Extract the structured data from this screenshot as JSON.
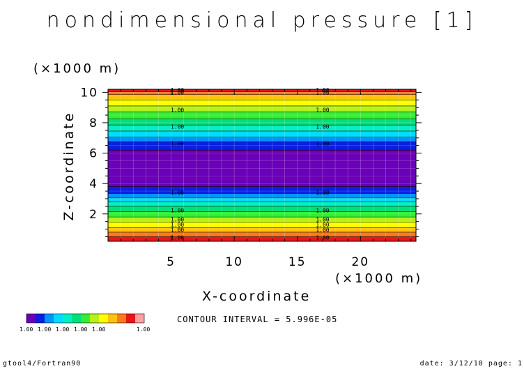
{
  "title": "nondimensional pressure [1]",
  "xaxis": {
    "label": "X-coordinate",
    "unit": "(×1000 m)",
    "ticks": [
      5,
      10,
      15,
      20
    ],
    "range": [
      0,
      24.4
    ]
  },
  "yaxis": {
    "label": "Z-coordinate",
    "unit": "(×1000 m)",
    "ticks": [
      2,
      4,
      6,
      8,
      10
    ],
    "range": [
      0.2,
      10.2
    ]
  },
  "contour_interval_text": "CONTOUR INTERVAL = 5.996E-05",
  "footer_left": "gtool4/Fortran90",
  "footer_right": "date: 3/12/10 page: 1",
  "chart_data": {
    "type": "heatmap",
    "title": "nondimensional pressure [1]",
    "xlabel": "X-coordinate",
    "ylabel": "Z-coordinate",
    "xlim": [
      0,
      24.4
    ],
    "ylim": [
      0.2,
      10.2
    ],
    "bands": [
      {
        "z0": 0.2,
        "z1": 0.5,
        "color": "#e8161b"
      },
      {
        "z0": 0.5,
        "z1": 0.8,
        "color": "#ff7a1a"
      },
      {
        "z0": 0.8,
        "z1": 1.1,
        "color": "#ffc20e"
      },
      {
        "z0": 1.1,
        "z1": 1.45,
        "color": "#ffff00"
      },
      {
        "z0": 1.45,
        "z1": 1.8,
        "color": "#b7f01c"
      },
      {
        "z0": 1.8,
        "z1": 2.15,
        "color": "#33ee33"
      },
      {
        "z0": 2.15,
        "z1": 2.5,
        "color": "#00e07a"
      },
      {
        "z0": 2.5,
        "z1": 2.8,
        "color": "#00f0c8"
      },
      {
        "z0": 2.8,
        "z1": 3.05,
        "color": "#00dcff"
      },
      {
        "z0": 3.05,
        "z1": 3.35,
        "color": "#0094ff"
      },
      {
        "z0": 3.35,
        "z1": 3.8,
        "color": "#0a1fe0"
      },
      {
        "z0": 3.8,
        "z1": 6.2,
        "color": "#6a00b8"
      },
      {
        "z0": 6.2,
        "z1": 6.75,
        "color": "#0a1fe0"
      },
      {
        "z0": 6.75,
        "z1": 7.05,
        "color": "#0094ff"
      },
      {
        "z0": 7.05,
        "z1": 7.45,
        "color": "#00dcff"
      },
      {
        "z0": 7.45,
        "z1": 7.85,
        "color": "#00f0c8"
      },
      {
        "z0": 7.85,
        "z1": 8.25,
        "color": "#00e07a"
      },
      {
        "z0": 8.25,
        "z1": 8.7,
        "color": "#33ee33"
      },
      {
        "z0": 8.7,
        "z1": 9.1,
        "color": "#b7f01c"
      },
      {
        "z0": 9.1,
        "z1": 9.5,
        "color": "#ffff00"
      },
      {
        "z0": 9.5,
        "z1": 9.85,
        "color": "#ffc20e"
      },
      {
        "z0": 9.85,
        "z1": 10.05,
        "color": "#ff7a1a"
      },
      {
        "z0": 10.05,
        "z1": 10.2,
        "color": "#e8161b"
      }
    ],
    "contour_labels": [
      {
        "z": 0.45,
        "text": "1.00"
      },
      {
        "z": 0.95,
        "text": "1.00"
      },
      {
        "z": 1.3,
        "text": "1.00"
      },
      {
        "z": 1.65,
        "text": "1.00"
      },
      {
        "z": 2.25,
        "text": "1.00"
      },
      {
        "z": 3.4,
        "text": "1.00"
      },
      {
        "z": 6.65,
        "text": "1.00"
      },
      {
        "z": 7.75,
        "text": "1.00"
      },
      {
        "z": 8.85,
        "text": "1.00"
      },
      {
        "z": 10.0,
        "text": "1.00"
      },
      {
        "z": 10.15,
        "text": "1.00"
      }
    ],
    "contour_label_x": [
      5.5,
      17.0
    ],
    "legend": {
      "colors": [
        "#6a00b8",
        "#0a1fe0",
        "#0094ff",
        "#00dcff",
        "#00f0c8",
        "#00e07a",
        "#33ee33",
        "#b7f01c",
        "#ffff00",
        "#ffc20e",
        "#ff7a1a",
        "#e8161b",
        "#ffa0a0"
      ],
      "labels": [
        "1.00",
        "1.00",
        "1.00",
        "1.00",
        "1.00",
        "1.00"
      ]
    }
  }
}
